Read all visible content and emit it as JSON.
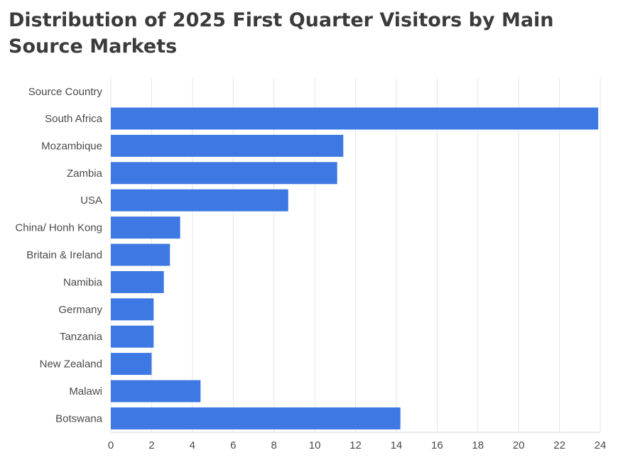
{
  "chart_data": {
    "type": "bar",
    "orientation": "horizontal",
    "title": "Distribution of 2025 First Quarter Visitors by Main Source Markets",
    "category_header": "Source Country",
    "categories": [
      "South Africa",
      "Mozambique",
      "Zambia",
      "USA",
      "China/ Honh Kong",
      "Britain & Ireland",
      "Namibia",
      "Germany",
      "Tanzania",
      "New Zealand",
      "Malawi",
      "Botswana"
    ],
    "values": [
      23.9,
      11.4,
      11.1,
      8.7,
      3.4,
      2.9,
      2.6,
      2.1,
      2.1,
      2.0,
      4.4,
      14.2
    ],
    "xlim": [
      0,
      24
    ],
    "xticks": [
      0,
      2,
      4,
      6,
      8,
      10,
      12,
      14,
      16,
      18,
      20,
      22,
      24
    ],
    "grid": "vertical",
    "legend": "none",
    "bar_color": "#3d78e3"
  }
}
